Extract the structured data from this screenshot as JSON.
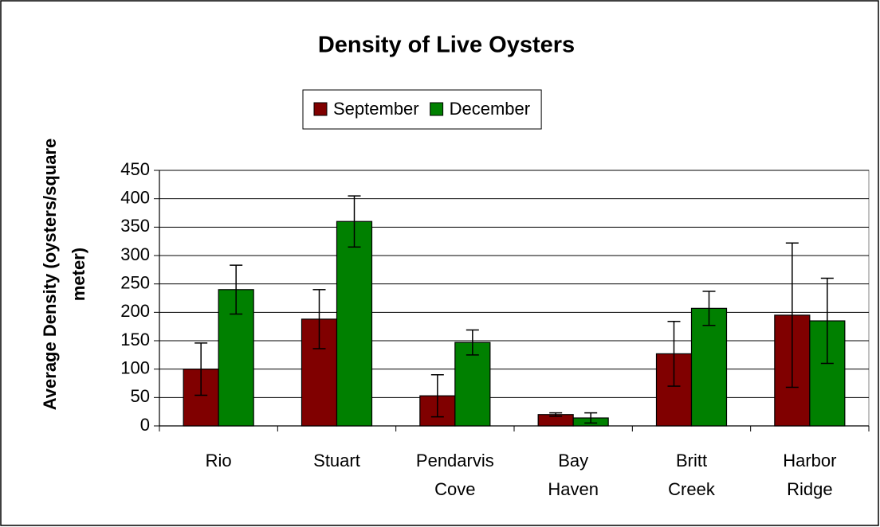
{
  "chart_data": {
    "type": "bar",
    "title": "Density of Live Oysters",
    "y_label": "Average Density (oysters/square meter)",
    "categories": [
      "Rio",
      "Stuart",
      "Pendarvis Cove",
      "Bay Haven",
      "Britt Creek",
      "Harbor Ridge"
    ],
    "series": [
      {
        "name": "September",
        "color": "#800000",
        "values": [
          100,
          188,
          53,
          20,
          127,
          195
        ],
        "errors": [
          46,
          52,
          37,
          3,
          57,
          127
        ]
      },
      {
        "name": "December",
        "color": "#008000",
        "values": [
          240,
          360,
          147,
          14,
          207,
          185
        ],
        "errors": [
          43,
          45,
          22,
          9,
          30,
          75
        ]
      }
    ],
    "ylim": [
      0,
      450
    ],
    "yticks": [
      0,
      50,
      100,
      150,
      200,
      250,
      300,
      350,
      400,
      450
    ],
    "grid": true,
    "legend": "top"
  }
}
